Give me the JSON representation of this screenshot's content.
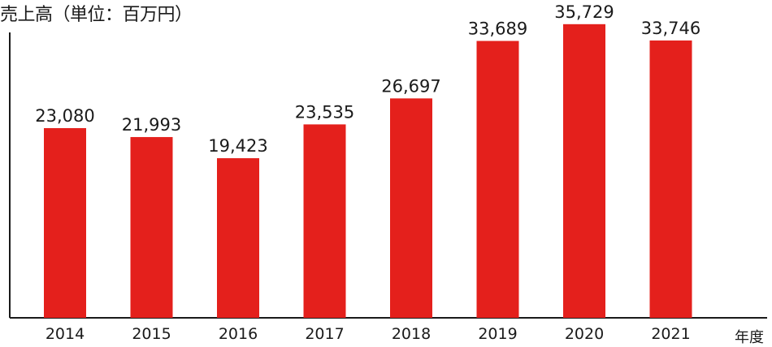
{
  "chart_data": {
    "type": "bar",
    "ylabel": "売上高（単位：百万円）",
    "xlabel": "年度",
    "categories": [
      "2014",
      "2015",
      "2016",
      "2017",
      "2018",
      "2019",
      "2020",
      "2021"
    ],
    "values": [
      23080,
      21993,
      19423,
      23535,
      26697,
      33689,
      35729,
      33746
    ],
    "value_labels": [
      "23,080",
      "21,993",
      "19,423",
      "23,535",
      "26,697",
      "33,689",
      "35,729",
      "33,746"
    ],
    "ylim": [
      0,
      36500
    ],
    "grid": false,
    "colors": {
      "bar": "#e4201c",
      "axis": "#1a1a1a"
    }
  }
}
